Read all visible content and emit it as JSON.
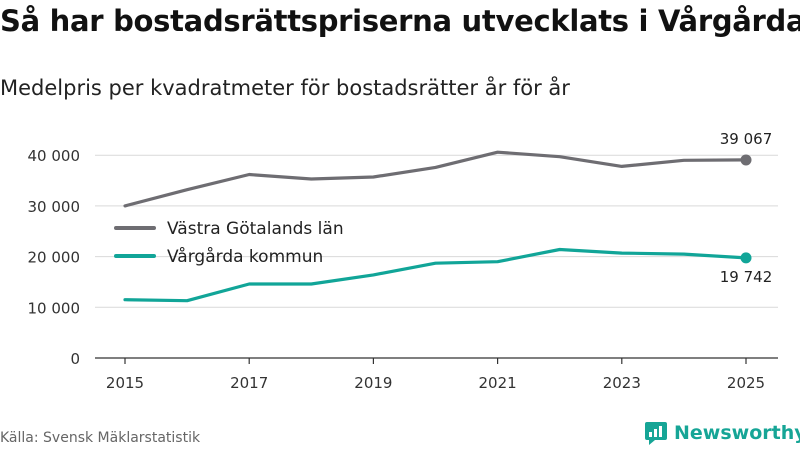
{
  "header": {
    "title": "Så har bostadsrättspriserna utvecklats i Vårgårda",
    "subtitle": "Medelpris per kvadratmeter för bostadsrätter år för år"
  },
  "footer": {
    "source": "Källa: Svensk Mäklarstatistik",
    "brand": "Newsworthy"
  },
  "colors": {
    "series_region": "#6e6d72",
    "series_municipality": "#11a598",
    "grid": "#d9d9d9",
    "axis": "#333333",
    "brand": "#16a596"
  },
  "chart_data": {
    "type": "line",
    "title": "Så har bostadsrättspriserna utvecklats i Vårgårda",
    "subtitle": "Medelpris per kvadratmeter för bostadsrätter år för år",
    "xlabel": "",
    "ylabel": "",
    "x": [
      2015,
      2016,
      2017,
      2018,
      2019,
      2020,
      2021,
      2022,
      2023,
      2024,
      2025
    ],
    "xticks": [
      2015,
      2017,
      2019,
      2021,
      2023,
      2025
    ],
    "xtick_labels": [
      "2015",
      "2017",
      "2019",
      "2021",
      "2023",
      "2025"
    ],
    "ylim": [
      0,
      43000
    ],
    "yticks": [
      0,
      10000,
      20000,
      30000,
      40000
    ],
    "ytick_labels": [
      "0",
      "10 000",
      "20 000",
      "30 000",
      "40 000"
    ],
    "grid": true,
    "legend_position": "left-middle",
    "series": [
      {
        "name": "Västra Götalands län",
        "color": "#6e6d72",
        "values": [
          30000,
          33200,
          36200,
          35300,
          35700,
          37600,
          40600,
          39700,
          37800,
          39000,
          39067
        ],
        "end_label": "39 067",
        "end_label_position": "above"
      },
      {
        "name": "Vårgårda kommun",
        "color": "#11a598",
        "values": [
          11500,
          11300,
          14600,
          14600,
          16400,
          18700,
          19000,
          21400,
          20700,
          20500,
          19742
        ],
        "end_label": "19 742",
        "end_label_position": "below"
      }
    ]
  }
}
